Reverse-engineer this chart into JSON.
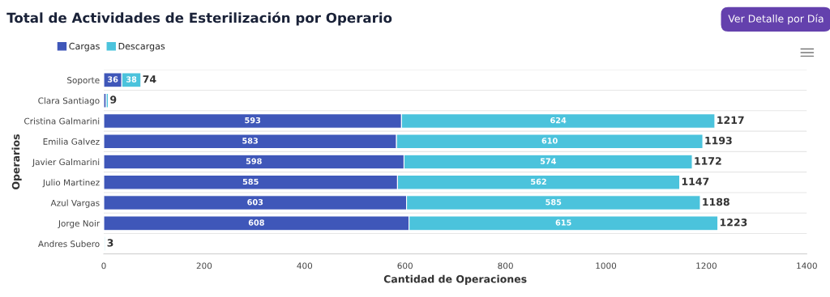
{
  "chart_data": {
    "type": "bar",
    "orientation": "horizontal",
    "stacked": true,
    "title": "Total de Actividades de Esterilización por Operario",
    "xlabel": "Cantidad de Operaciones",
    "ylabel": "Operarios",
    "categories": [
      "Soporte",
      "Clara Santiago",
      "Cristina Galmarini",
      "Emilia Galvez",
      "Javier Galmarini",
      "Julio Martinez",
      "Azul Vargas",
      "Jorge Noir",
      "Andres Subero"
    ],
    "series": [
      {
        "name": "Cargas",
        "color": "#3f57b9",
        "values": [
          36,
          5,
          593,
          583,
          598,
          585,
          603,
          608,
          1
        ],
        "value_labels": [
          "36",
          null,
          "593",
          "583",
          "598",
          "585",
          "603",
          "608",
          null
        ]
      },
      {
        "name": "Descargas",
        "color": "#4bc3dc",
        "values": [
          38,
          4,
          624,
          610,
          574,
          562,
          585,
          615,
          2
        ],
        "value_labels": [
          "38",
          null,
          "624",
          "610",
          "574",
          "562",
          "585",
          "615",
          null
        ]
      }
    ],
    "totals": [
      "74",
      "9",
      "1217",
      "1193",
      "1172",
      "1147",
      "1188",
      "1223",
      "3"
    ],
    "xlim": [
      0,
      1400
    ],
    "xticks": [
      0,
      200,
      400,
      600,
      800,
      1000,
      1200,
      1400
    ],
    "grid": "y",
    "legend": "top left",
    "annotations": [
      "Ver Detalle por Día"
    ]
  }
}
